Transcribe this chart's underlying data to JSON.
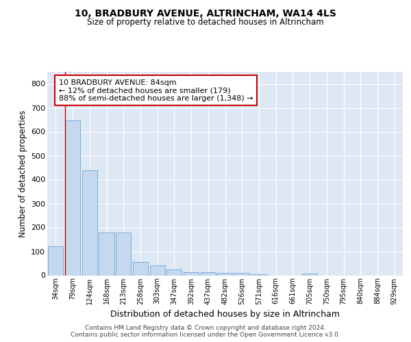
{
  "title": "10, BRADBURY AVENUE, ALTRINCHAM, WA14 4LS",
  "subtitle": "Size of property relative to detached houses in Altrincham",
  "xlabel": "Distribution of detached houses by size in Altrincham",
  "ylabel": "Number of detached properties",
  "categories": [
    "34sqm",
    "79sqm",
    "124sqm",
    "168sqm",
    "213sqm",
    "258sqm",
    "303sqm",
    "347sqm",
    "392sqm",
    "437sqm",
    "482sqm",
    "526sqm",
    "571sqm",
    "616sqm",
    "661sqm",
    "705sqm",
    "750sqm",
    "795sqm",
    "840sqm",
    "884sqm",
    "929sqm"
  ],
  "values": [
    122,
    648,
    440,
    178,
    178,
    57,
    42,
    25,
    12,
    12,
    10,
    10,
    5,
    0,
    0,
    8,
    0,
    0,
    0,
    0,
    0
  ],
  "bar_color": "#c5d8ee",
  "bar_edge_color": "#7aadda",
  "annotation_line1": "10 BRADBURY AVENUE: 84sqm",
  "annotation_line2": "← 12% of detached houses are smaller (179)",
  "annotation_line3": "88% of semi-detached houses are larger (1,348) →",
  "annotation_box_edgecolor": "#cc0000",
  "red_line_color": "#cc0000",
  "background_color": "#dde8f4",
  "grid_color": "#ffffff",
  "ylim": [
    0,
    850
  ],
  "yticks": [
    0,
    100,
    200,
    300,
    400,
    500,
    600,
    700,
    800
  ],
  "footer_line1": "Contains HM Land Registry data © Crown copyright and database right 2024.",
  "footer_line2": "Contains public sector information licensed under the Open Government Licence v3.0."
}
